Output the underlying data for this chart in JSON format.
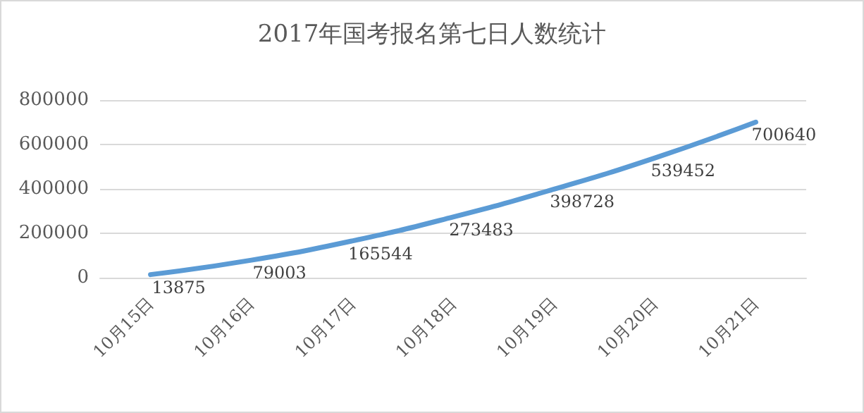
{
  "chart_data": {
    "type": "line",
    "title": "2017年国考报名第七日人数统计",
    "categories": [
      "10月15日",
      "10月16日",
      "10月17日",
      "10月18日",
      "10月19日",
      "10月20日",
      "10月21日"
    ],
    "series": [
      {
        "color": "#5b9bd5",
        "values": [
          13875,
          79003,
          165544,
          273483,
          398728,
          539452,
          700640
        ]
      }
    ],
    "ylim": [
      0,
      800000
    ],
    "yticks": [
      0,
      200000,
      400000,
      600000,
      800000
    ],
    "grid": "y",
    "marker": "none",
    "line_style": "solid",
    "data_labels": true
  }
}
